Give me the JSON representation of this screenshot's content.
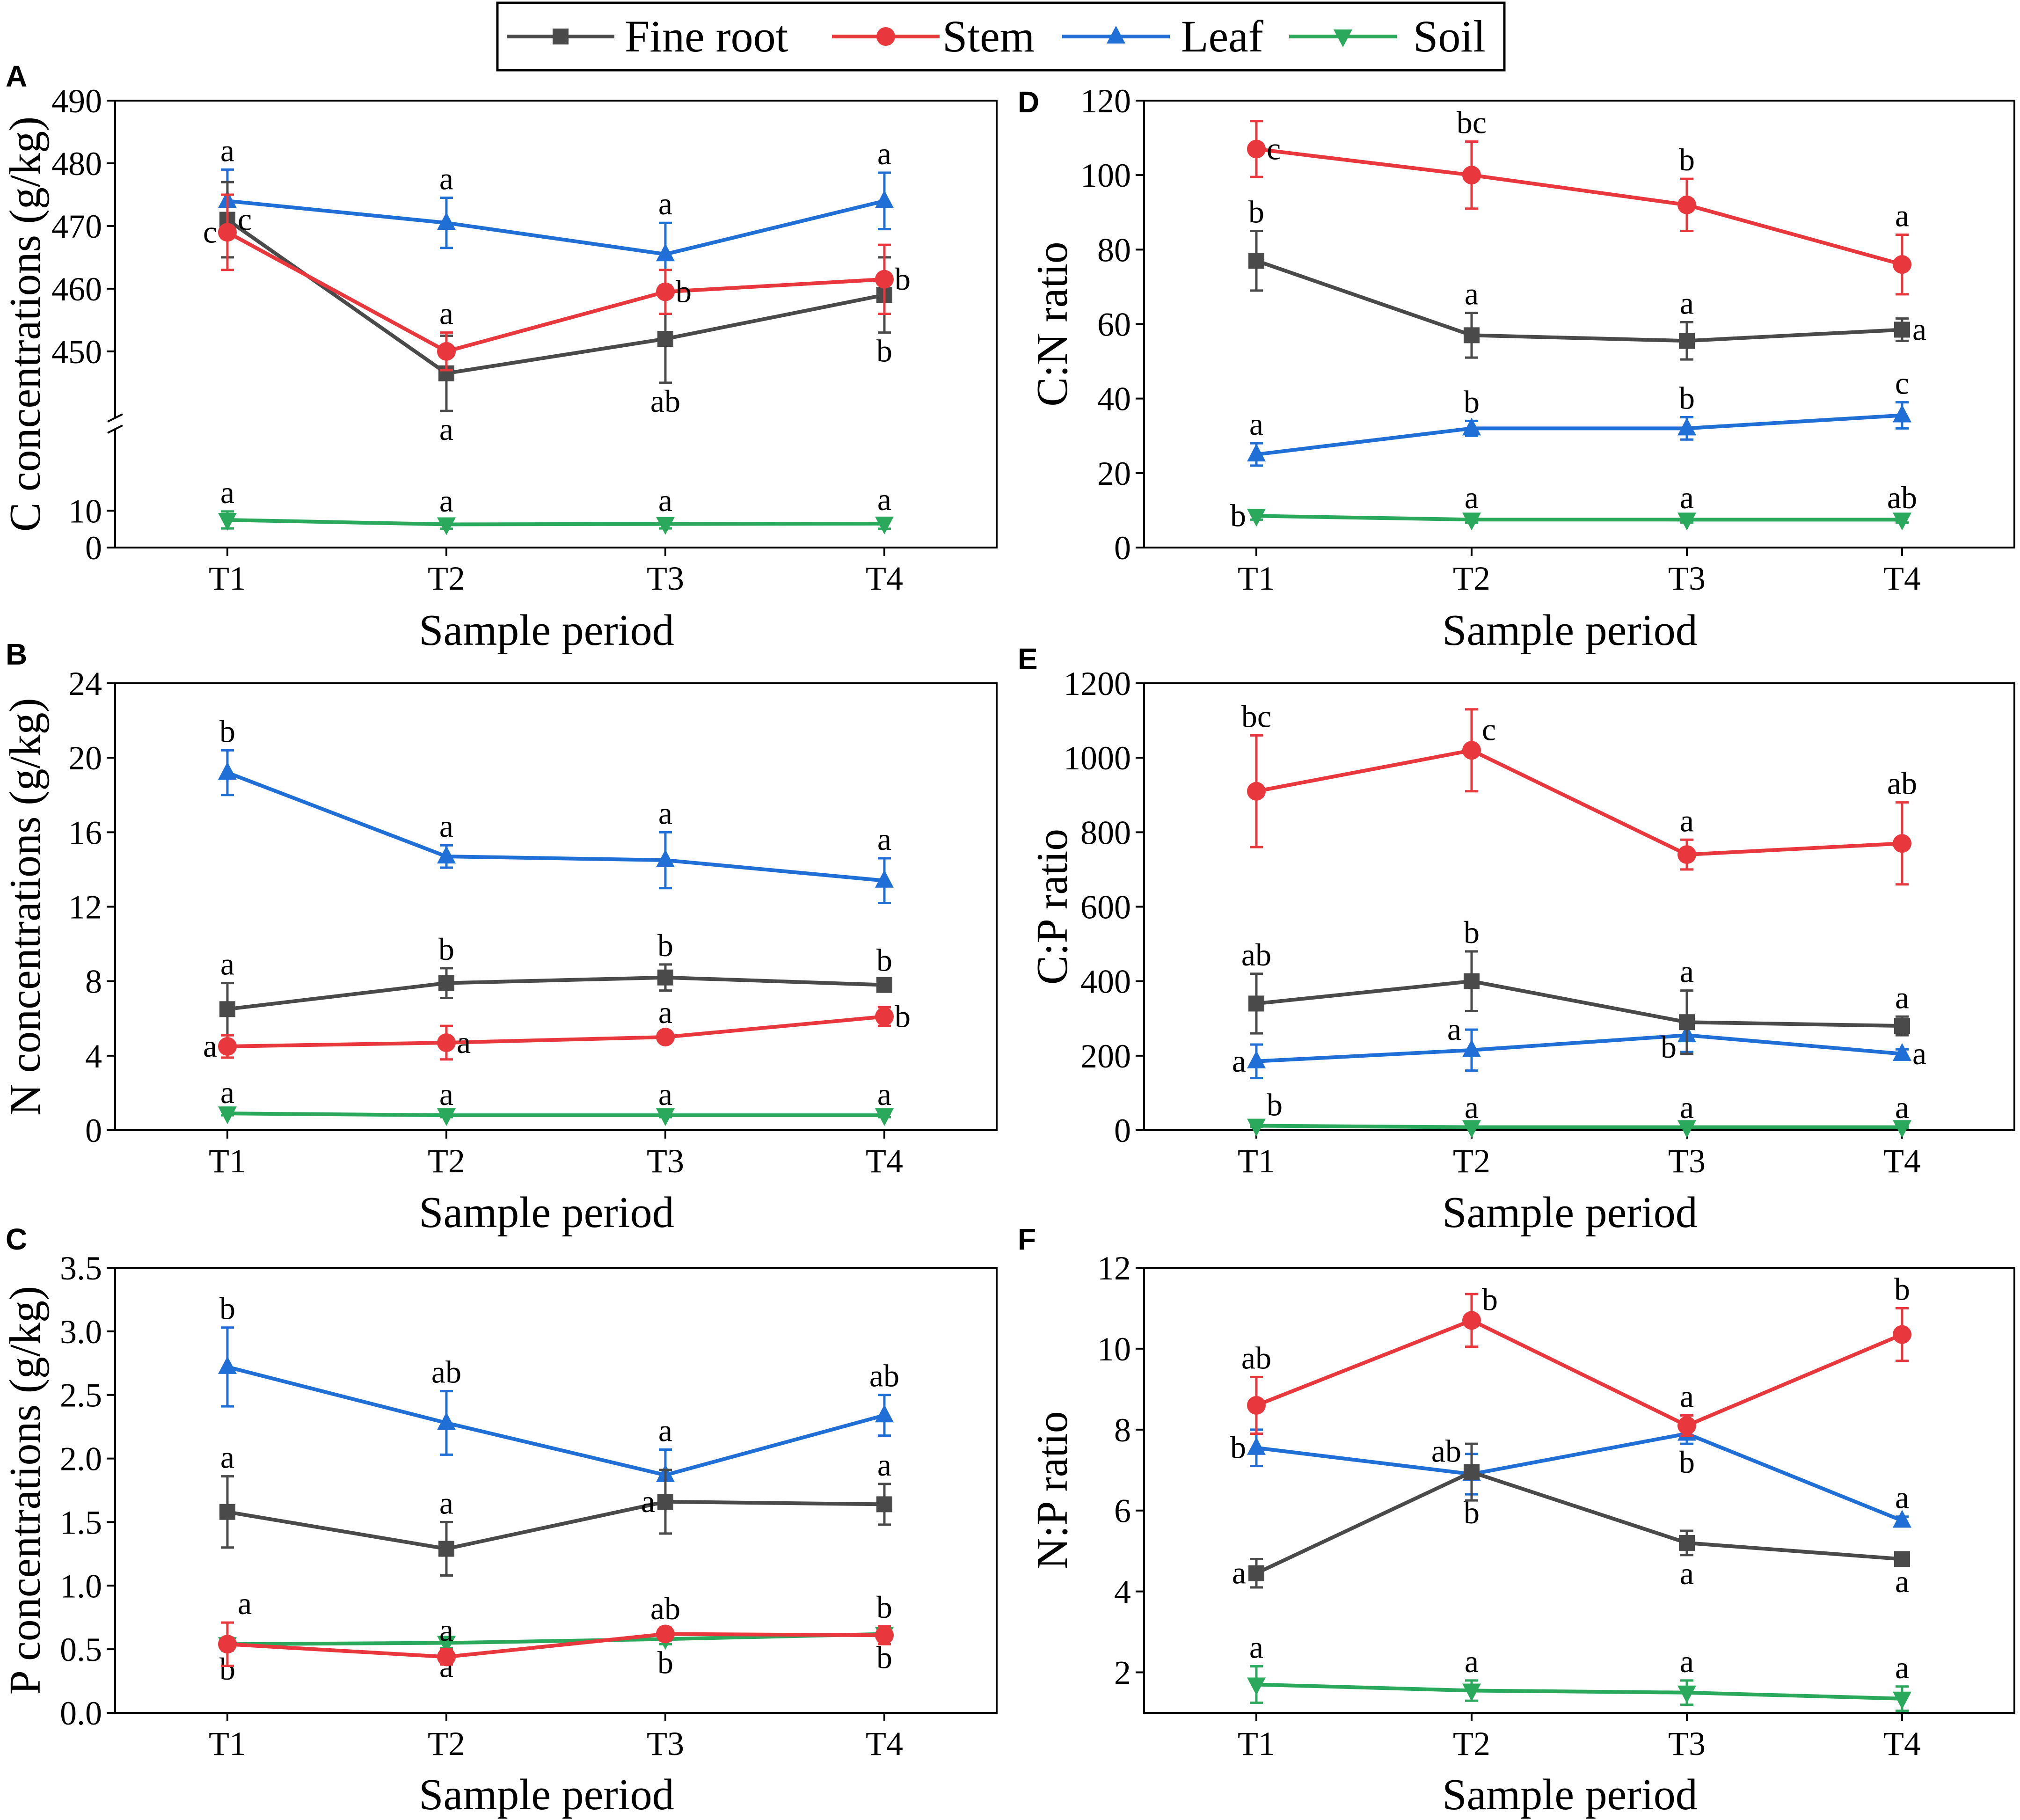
{
  "figure": {
    "legend": [
      {
        "name": "Fine root",
        "color": "#4a4a4a",
        "marker": "square"
      },
      {
        "name": "Stem",
        "color": "#e8383d",
        "marker": "circle"
      },
      {
        "name": "Leaf",
        "color": "#1f6fd6",
        "marker": "triangle-up"
      },
      {
        "name": "Soil",
        "color": "#2aa85c",
        "marker": "triangle-down"
      }
    ]
  },
  "chart_data": [
    {
      "id": "A",
      "type": "line",
      "panel_label": "A",
      "ylabel": "C concentrations (g/kg)",
      "xlabel": "Sample period",
      "categories": [
        "T1",
        "T2",
        "T3",
        "T4"
      ],
      "ylim": [
        0,
        490
      ],
      "axis_break": [
        15,
        442
      ],
      "yticks": [
        0,
        10,
        450,
        460,
        470,
        480,
        490
      ],
      "series": [
        {
          "name": "Fine root",
          "values": [
            471,
            446.5,
            452,
            459
          ],
          "errors": [
            6,
            6,
            7,
            6
          ],
          "letters": [
            "c",
            "a",
            "ab",
            "b"
          ]
        },
        {
          "name": "Stem",
          "values": [
            469,
            450,
            459.5,
            461.5
          ],
          "errors": [
            6,
            3,
            3.5,
            5.5
          ],
          "letters": [
            "c",
            "a",
            "b",
            "b"
          ]
        },
        {
          "name": "Leaf",
          "values": [
            474,
            470.5,
            465.5,
            474
          ],
          "errors": [
            5,
            4,
            5,
            4.5
          ],
          "letters": [
            "a",
            "a",
            "a",
            "a"
          ]
        },
        {
          "name": "Soil",
          "values": [
            7.5,
            6.3,
            6.4,
            6.5
          ],
          "errors": [
            2.3,
            1.2,
            1.2,
            1.4
          ],
          "letters": [
            "a",
            "a",
            "a",
            "a"
          ]
        }
      ]
    },
    {
      "id": "B",
      "type": "line",
      "panel_label": "B",
      "ylabel": "N concentrations (g/kg)",
      "xlabel": "Sample period",
      "categories": [
        "T1",
        "T2",
        "T3",
        "T4"
      ],
      "ylim": [
        0,
        24
      ],
      "yticks": [
        0,
        4,
        8,
        12,
        16,
        20,
        24
      ],
      "series": [
        {
          "name": "Fine root",
          "values": [
            6.5,
            7.9,
            8.2,
            7.8
          ],
          "errors": [
            1.4,
            0.8,
            0.7,
            0.3
          ],
          "letters": [
            "a",
            "b",
            "b",
            "b"
          ]
        },
        {
          "name": "Stem",
          "values": [
            4.5,
            4.7,
            5.0,
            6.1
          ],
          "errors": [
            0.6,
            0.9,
            0.3,
            0.5
          ],
          "letters": [
            "a",
            "a",
            "a",
            "b"
          ]
        },
        {
          "name": "Leaf",
          "values": [
            19.2,
            14.7,
            14.5,
            13.4
          ],
          "errors": [
            1.2,
            0.6,
            1.5,
            1.2
          ],
          "letters": [
            "b",
            "a",
            "a",
            "a"
          ]
        },
        {
          "name": "Soil",
          "values": [
            0.9,
            0.8,
            0.8,
            0.8
          ],
          "errors": [
            0.1,
            0.1,
            0.1,
            0.1
          ],
          "letters": [
            "a",
            "a",
            "a",
            "a"
          ]
        }
      ]
    },
    {
      "id": "C",
      "type": "line",
      "panel_label": "C",
      "ylabel": "P concentrations (g/kg)",
      "xlabel": "Sample period",
      "categories": [
        "T1",
        "T2",
        "T3",
        "T4"
      ],
      "ylim": [
        0,
        3.5
      ],
      "yticks": [
        0.0,
        0.5,
        1.0,
        1.5,
        2.0,
        2.5,
        3.0,
        3.5
      ],
      "tick_labels": [
        "0.0",
        "0.5",
        "1.0",
        "1.5",
        "2.0",
        "2.5",
        "3.0",
        "3.5"
      ],
      "series": [
        {
          "name": "Fine root",
          "values": [
            1.58,
            1.29,
            1.66,
            1.64
          ],
          "errors": [
            0.28,
            0.21,
            0.25,
            0.16
          ],
          "letters": [
            "a",
            "a",
            "a",
            "a"
          ]
        },
        {
          "name": "Stem",
          "values": [
            0.54,
            0.44,
            0.62,
            0.61
          ],
          "errors": [
            0.17,
            0.06,
            0.05,
            0.07
          ],
          "letters": [
            "a",
            "a",
            "ab",
            "b"
          ]
        },
        {
          "name": "Leaf",
          "values": [
            2.72,
            2.28,
            1.87,
            2.34
          ],
          "errors": [
            0.31,
            0.25,
            0.2,
            0.16
          ],
          "letters": [
            "b",
            "ab",
            "a",
            "ab"
          ]
        },
        {
          "name": "Soil",
          "values": [
            0.54,
            0.55,
            0.58,
            0.62
          ],
          "errors": [
            0.05,
            0.04,
            0.04,
            0.04
          ],
          "letters": [
            "b",
            "a",
            "b",
            "b"
          ]
        }
      ]
    },
    {
      "id": "D",
      "type": "line",
      "panel_label": "D",
      "ylabel": "C:N ratio",
      "xlabel": "Sample period",
      "categories": [
        "T1",
        "T2",
        "T3",
        "T4"
      ],
      "ylim": [
        0,
        120
      ],
      "yticks": [
        0,
        20,
        40,
        60,
        80,
        100,
        120
      ],
      "series": [
        {
          "name": "Fine root",
          "values": [
            77,
            57,
            55.5,
            58.5
          ],
          "errors": [
            8,
            6,
            5,
            3
          ],
          "letters": [
            "b",
            "a",
            "a",
            "a"
          ]
        },
        {
          "name": "Stem",
          "values": [
            107,
            100,
            92,
            76
          ],
          "errors": [
            7.5,
            9,
            7,
            8
          ],
          "letters": [
            "c",
            "bc",
            "b",
            "a"
          ]
        },
        {
          "name": "Leaf",
          "values": [
            25,
            32,
            32,
            35.5
          ],
          "errors": [
            3,
            2,
            3,
            3.5
          ],
          "letters": [
            "a",
            "b",
            "b",
            "c"
          ]
        },
        {
          "name": "Soil",
          "values": [
            8.5,
            7.5,
            7.5,
            7.5
          ],
          "errors": [
            1,
            0.8,
            0.8,
            0.8
          ],
          "letters": [
            "b",
            "a",
            "a",
            "ab"
          ]
        }
      ]
    },
    {
      "id": "E",
      "type": "line",
      "panel_label": "E",
      "ylabel": "C:P ratio",
      "xlabel": "Sample period",
      "categories": [
        "T1",
        "T2",
        "T3",
        "T4"
      ],
      "ylim": [
        0,
        1200
      ],
      "yticks": [
        0,
        200,
        400,
        600,
        800,
        1000,
        1200
      ],
      "series": [
        {
          "name": "Fine root",
          "values": [
            340,
            400,
            290,
            280
          ],
          "errors": [
            80,
            80,
            85,
            25
          ],
          "letters": [
            "ab",
            "b",
            "a",
            "a"
          ]
        },
        {
          "name": "Stem",
          "values": [
            910,
            1020,
            740,
            770
          ],
          "errors": [
            150,
            110,
            40,
            110
          ],
          "letters": [
            "bc",
            "c",
            "a",
            "ab"
          ]
        },
        {
          "name": "Leaf",
          "values": [
            185,
            215,
            255,
            205
          ],
          "errors": [
            45,
            55,
            45,
            12
          ],
          "letters": [
            "a",
            "a",
            "b",
            "a"
          ]
        },
        {
          "name": "Soil",
          "values": [
            12,
            8,
            8,
            8
          ],
          "errors": [
            3,
            2,
            2,
            2
          ],
          "letters": [
            "b",
            "a",
            "a",
            "a"
          ]
        }
      ]
    },
    {
      "id": "F",
      "type": "line",
      "panel_label": "F",
      "ylabel": "N:P ratio",
      "xlabel": "Sample period",
      "categories": [
        "T1",
        "T2",
        "T3",
        "T4"
      ],
      "ylim": [
        1,
        12
      ],
      "yticks": [
        2,
        4,
        6,
        8,
        10,
        12
      ],
      "series": [
        {
          "name": "Fine root",
          "values": [
            4.45,
            6.95,
            5.2,
            4.8
          ],
          "errors": [
            0.35,
            0.7,
            0.3,
            0.1
          ],
          "letters": [
            "a",
            "ab",
            "a",
            "a"
          ]
        },
        {
          "name": "Stem",
          "values": [
            8.6,
            10.7,
            8.1,
            10.35
          ],
          "errors": [
            0.7,
            0.65,
            0.25,
            0.65
          ],
          "letters": [
            "ab",
            "b",
            "a",
            "b"
          ]
        },
        {
          "name": "Leaf",
          "values": [
            7.55,
            6.9,
            7.9,
            5.75
          ],
          "errors": [
            0.45,
            0.5,
            0.25,
            0.1
          ],
          "letters": [
            "b",
            "b",
            "b",
            "a"
          ]
        },
        {
          "name": "Soil",
          "values": [
            1.7,
            1.55,
            1.5,
            1.35
          ],
          "errors": [
            0.45,
            0.25,
            0.3,
            0.3
          ],
          "letters": [
            "a",
            "a",
            "a",
            "a"
          ]
        }
      ]
    }
  ]
}
